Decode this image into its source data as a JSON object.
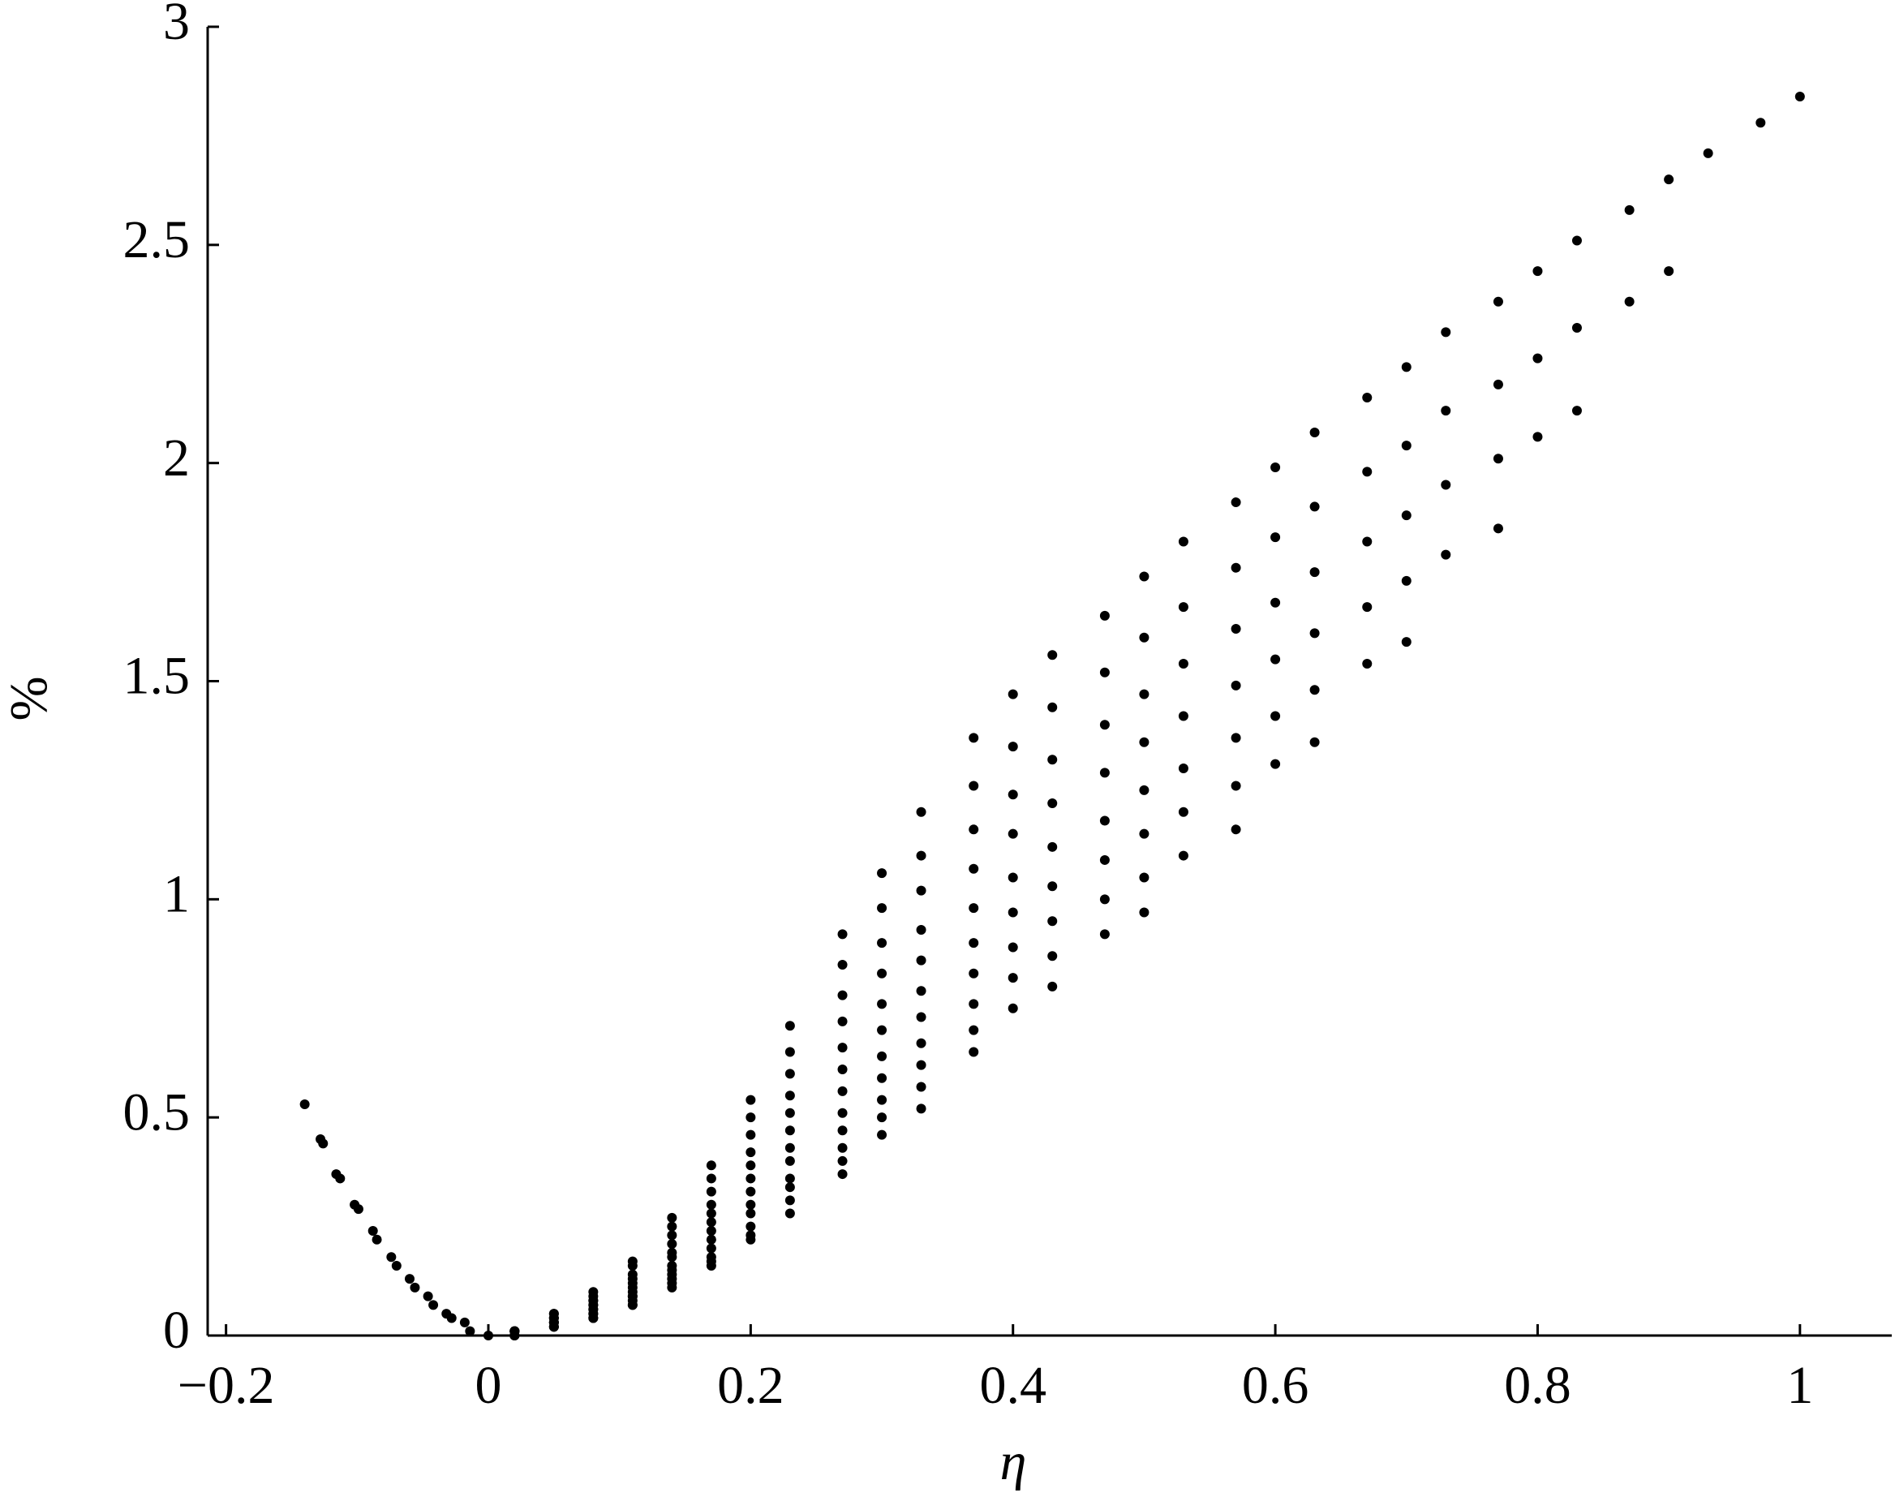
{
  "chart_data": {
    "type": "scatter",
    "xlabel": "η",
    "ylabel": "%",
    "color": "#000000",
    "xlim": [
      -0.214,
      1.07
    ],
    "ylim": [
      0,
      3
    ],
    "xticks": [
      {
        "value": -0.2,
        "label": "−0.2"
      },
      0,
      0.2,
      0.4,
      0.6,
      0.8,
      1
    ],
    "yticks": [
      0,
      0.5,
      1,
      1.5,
      2,
      2.5,
      3
    ],
    "series": [
      {
        "x": [
          0.02,
          0.05,
          0.08,
          0.11,
          0.14,
          0.17,
          0.2,
          0.23,
          0.27,
          0.3,
          0.33,
          0.37,
          0.4,
          0.43,
          0.47,
          0.5,
          0.53,
          0.57,
          0.6,
          0.63,
          0.67,
          0.7,
          0.73,
          0.77,
          0.8,
          0.83,
          0.87,
          0.9,
          0.93,
          0.97,
          1
        ],
        "values": [
          0.01,
          0.05,
          0.1,
          0.17,
          0.27,
          0.39,
          0.54,
          0.71,
          0.92,
          1.06,
          1.2,
          1.37,
          1.47,
          1.56,
          1.65,
          1.74,
          1.82,
          1.91,
          1.99,
          2.07,
          2.15,
          2.22,
          2.3,
          2.37,
          2.44,
          2.51,
          2.58,
          2.65,
          2.71,
          2.78,
          2.84
        ]
      },
      {
        "x": [
          0.02,
          0.05,
          0.08,
          0.11,
          0.14,
          0.17,
          0.2,
          0.23,
          0.27,
          0.3,
          0.33,
          0.37,
          0.4,
          0.43,
          0.47,
          0.5,
          0.53,
          0.57,
          0.6,
          0.63,
          0.67,
          0.7,
          0.73,
          0.77,
          0.8,
          0.83,
          0.87,
          0.9
        ],
        "values": [
          0.01,
          0.05,
          0.09,
          0.16,
          0.25,
          0.36,
          0.5,
          0.65,
          0.85,
          0.98,
          1.1,
          1.26,
          1.35,
          1.44,
          1.52,
          1.6,
          1.67,
          1.76,
          1.83,
          1.9,
          1.98,
          2.04,
          2.12,
          2.18,
          2.24,
          2.31,
          2.37,
          2.44
        ]
      },
      {
        "x": [
          0.02,
          0.05,
          0.08,
          0.11,
          0.14,
          0.17,
          0.2,
          0.23,
          0.27,
          0.3,
          0.33,
          0.37,
          0.4,
          0.43,
          0.47,
          0.5,
          0.53,
          0.57,
          0.6,
          0.63,
          0.67,
          0.7,
          0.73,
          0.77,
          0.8,
          0.83
        ],
        "values": [
          0.01,
          0.04,
          0.08,
          0.14,
          0.23,
          0.33,
          0.46,
          0.6,
          0.78,
          0.9,
          1.02,
          1.16,
          1.24,
          1.32,
          1.4,
          1.47,
          1.54,
          1.62,
          1.68,
          1.75,
          1.82,
          1.88,
          1.95,
          2.01,
          2.06,
          2.12
        ]
      },
      {
        "x": [
          0.02,
          0.05,
          0.08,
          0.11,
          0.14,
          0.17,
          0.2,
          0.23,
          0.27,
          0.3,
          0.33,
          0.37,
          0.4,
          0.43,
          0.47,
          0.5,
          0.53,
          0.57,
          0.6,
          0.63,
          0.67,
          0.7,
          0.73,
          0.77
        ],
        "values": [
          0.01,
          0.04,
          0.08,
          0.13,
          0.21,
          0.3,
          0.42,
          0.55,
          0.72,
          0.83,
          0.93,
          1.07,
          1.15,
          1.22,
          1.29,
          1.36,
          1.42,
          1.49,
          1.55,
          1.61,
          1.67,
          1.73,
          1.79,
          1.85
        ]
      },
      {
        "x": [
          0.02,
          0.05,
          0.08,
          0.11,
          0.14,
          0.17,
          0.2,
          0.23,
          0.27,
          0.3,
          0.33,
          0.37,
          0.4,
          0.43,
          0.47,
          0.5,
          0.53,
          0.57,
          0.6,
          0.63,
          0.67,
          0.7
        ],
        "values": [
          0.01,
          0.04,
          0.07,
          0.12,
          0.19,
          0.28,
          0.39,
          0.51,
          0.66,
          0.76,
          0.86,
          0.98,
          1.05,
          1.12,
          1.18,
          1.25,
          1.3,
          1.37,
          1.42,
          1.48,
          1.54,
          1.59
        ]
      },
      {
        "x": [
          0.02,
          0.05,
          0.08,
          0.11,
          0.14,
          0.17,
          0.2,
          0.23,
          0.27,
          0.3,
          0.33,
          0.37,
          0.4,
          0.43,
          0.47,
          0.5,
          0.53,
          0.57,
          0.6,
          0.63
        ],
        "values": [
          0.01,
          0.03,
          0.07,
          0.11,
          0.18,
          0.26,
          0.36,
          0.47,
          0.61,
          0.7,
          0.79,
          0.9,
          0.97,
          1.03,
          1.09,
          1.15,
          1.2,
          1.26,
          1.31,
          1.36
        ]
      },
      {
        "x": [
          0.02,
          0.05,
          0.08,
          0.11,
          0.14,
          0.17,
          0.2,
          0.23,
          0.27,
          0.3,
          0.33,
          0.37,
          0.4,
          0.43,
          0.47,
          0.5,
          0.53,
          0.57
        ],
        "values": [
          0.01,
          0.03,
          0.06,
          0.1,
          0.16,
          0.24,
          0.33,
          0.43,
          0.56,
          0.64,
          0.73,
          0.83,
          0.89,
          0.95,
          1,
          1.05,
          1.1,
          1.16
        ]
      },
      {
        "x": [
          0.02,
          0.05,
          0.08,
          0.11,
          0.14,
          0.17,
          0.2,
          0.23,
          0.27,
          0.3,
          0.33,
          0.37,
          0.4,
          0.43,
          0.47,
          0.5
        ],
        "values": [
          0.01,
          0.03,
          0.06,
          0.09,
          0.15,
          0.22,
          0.3,
          0.4,
          0.51,
          0.59,
          0.67,
          0.76,
          0.82,
          0.87,
          0.92,
          0.97
        ]
      },
      {
        "x": [
          0.02,
          0.05,
          0.08,
          0.11,
          0.14,
          0.17,
          0.2,
          0.23,
          0.27,
          0.3,
          0.33,
          0.37,
          0.4,
          0.43
        ],
        "values": [
          0.01,
          0.03,
          0.05,
          0.09,
          0.14,
          0.2,
          0.28,
          0.36,
          0.47,
          0.54,
          0.62,
          0.7,
          0.75,
          0.8
        ]
      },
      {
        "x": [
          0.02,
          0.05,
          0.08,
          0.11,
          0.14,
          0.17,
          0.2,
          0.23,
          0.27,
          0.3,
          0.33,
          0.37
        ],
        "values": [
          0,
          0.02,
          0.05,
          0.08,
          0.13,
          0.18,
          0.25,
          0.34,
          0.43,
          0.5,
          0.57,
          0.65
        ]
      },
      {
        "x": [
          0.02,
          0.05,
          0.08,
          0.11,
          0.14,
          0.17,
          0.2,
          0.23,
          0.27,
          0.3,
          0.33
        ],
        "values": [
          0,
          0.02,
          0.04,
          0.07,
          0.12,
          0.17,
          0.23,
          0.31,
          0.4,
          0.46,
          0.52
        ]
      },
      {
        "x": [
          0.02,
          0.05,
          0.08,
          0.11,
          0.14,
          0.17,
          0.2,
          0.23,
          0.27
        ],
        "values": [
          0,
          0.02,
          0.04,
          0.07,
          0.11,
          0.16,
          0.22,
          0.28,
          0.37
        ]
      },
      {
        "x": [
          -0.14,
          -0.128,
          -0.126,
          -0.116,
          -0.113,
          -0.102,
          -0.099,
          -0.088,
          -0.085,
          -0.074,
          -0.07,
          -0.06,
          -0.056,
          -0.046,
          -0.042,
          -0.032,
          -0.028,
          -0.018,
          -0.014,
          0
        ],
        "values": [
          0.53,
          0.45,
          0.44,
          0.37,
          0.36,
          0.3,
          0.29,
          0.24,
          0.22,
          0.18,
          0.16,
          0.13,
          0.11,
          0.09,
          0.07,
          0.05,
          0.04,
          0.03,
          0.01,
          0
        ]
      }
    ]
  }
}
